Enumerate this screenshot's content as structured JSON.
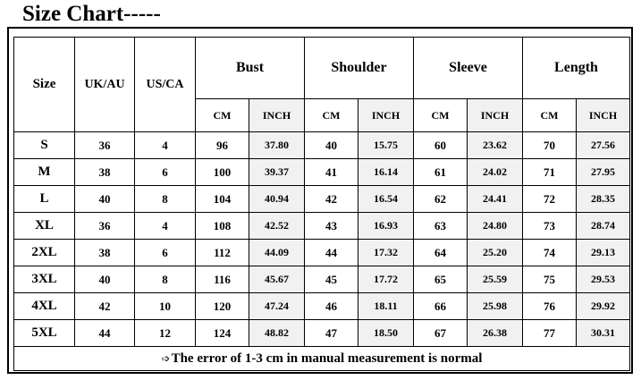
{
  "title": "Size Chart-----",
  "headers": {
    "size": "Size",
    "uk_au": "UK/AU",
    "us_ca": "US/CA",
    "bust": "Bust",
    "shoulder": "Shoulder",
    "sleeve": "Sleeve",
    "length": "Length",
    "cm": "CM",
    "inch": "INCH"
  },
  "rows": [
    {
      "size": "S",
      "uk": "36",
      "us": "4",
      "bust_cm": "96",
      "bust_in": "37.80",
      "shoulder_cm": "40",
      "shoulder_in": "15.75",
      "sleeve_cm": "60",
      "sleeve_in": "23.62",
      "length_cm": "70",
      "length_in": "27.56"
    },
    {
      "size": "M",
      "uk": "38",
      "us": "6",
      "bust_cm": "100",
      "bust_in": "39.37",
      "shoulder_cm": "41",
      "shoulder_in": "16.14",
      "sleeve_cm": "61",
      "sleeve_in": "24.02",
      "length_cm": "71",
      "length_in": "27.95"
    },
    {
      "size": "L",
      "uk": "40",
      "us": "8",
      "bust_cm": "104",
      "bust_in": "40.94",
      "shoulder_cm": "42",
      "shoulder_in": "16.54",
      "sleeve_cm": "62",
      "sleeve_in": "24.41",
      "length_cm": "72",
      "length_in": "28.35"
    },
    {
      "size": "XL",
      "uk": "36",
      "us": "4",
      "bust_cm": "108",
      "bust_in": "42.52",
      "shoulder_cm": "43",
      "shoulder_in": "16.93",
      "sleeve_cm": "63",
      "sleeve_in": "24.80",
      "length_cm": "73",
      "length_in": "28.74"
    },
    {
      "size": "2XL",
      "uk": "38",
      "us": "6",
      "bust_cm": "112",
      "bust_in": "44.09",
      "shoulder_cm": "44",
      "shoulder_in": "17.32",
      "sleeve_cm": "64",
      "sleeve_in": "25.20",
      "length_cm": "74",
      "length_in": "29.13"
    },
    {
      "size": "3XL",
      "uk": "40",
      "us": "8",
      "bust_cm": "116",
      "bust_in": "45.67",
      "shoulder_cm": "45",
      "shoulder_in": "17.72",
      "sleeve_cm": "65",
      "sleeve_in": "25.59",
      "length_cm": "75",
      "length_in": "29.53"
    },
    {
      "size": "4XL",
      "uk": "42",
      "us": "10",
      "bust_cm": "120",
      "bust_in": "47.24",
      "shoulder_cm": "46",
      "shoulder_in": "18.11",
      "sleeve_cm": "66",
      "sleeve_in": "25.98",
      "length_cm": "76",
      "length_in": "29.92"
    },
    {
      "size": "5XL",
      "uk": "44",
      "us": "12",
      "bust_cm": "124",
      "bust_in": "48.82",
      "shoulder_cm": "47",
      "shoulder_in": "18.50",
      "sleeve_cm": "67",
      "sleeve_in": "26.38",
      "length_cm": "77",
      "length_in": "30.31"
    }
  ],
  "note": {
    "icon": "right-arrow-icon",
    "arrow": "➩",
    "text": "The error of 1-3 cm in manual measurement is normal"
  }
}
